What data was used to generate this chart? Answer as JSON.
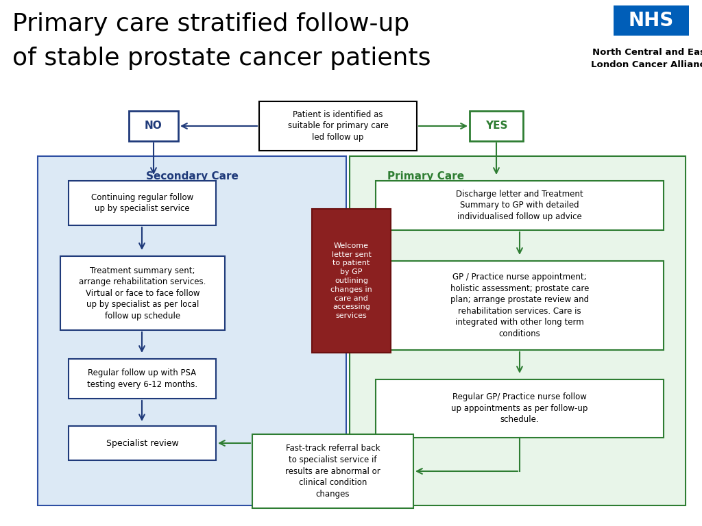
{
  "title_line1": "Primary care stratified follow-up",
  "title_line2": "of stable prostate cancer patients",
  "title_fontsize": 26,
  "nhs_text": "NHS",
  "org_line1": "North Central and East",
  "org_line2": "London Cancer Alliance",
  "bg_color": "#ffffff",
  "blue_dark": "#1f3a7a",
  "blue_fill": "#dce9f5",
  "blue_border": "#2e4fa3",
  "green_dark": "#2e7d32",
  "green_fill": "#e8f5e9",
  "green_border": "#2e7d32",
  "red_fill": "#8b2020",
  "red_border": "#6b1010",
  "nhs_blue": "#005eb8",
  "patient_box_text": "Patient is identified as\nsuitable for primary care\nled follow up",
  "no_text": "NO",
  "yes_text": "YES",
  "secondary_label": "Secondary Care",
  "primary_label": "Primary Care",
  "box1_text": "Continuing regular follow\nup by specialist service",
  "box2_text": "Treatment summary sent;\narrange rehabilitation services.\nVirtual or face to face follow\nup by specialist as per local\nfollow up schedule",
  "box3_text": "Regular follow up with PSA\ntesting every 6-12 months.",
  "box4_text": "Specialist review",
  "welcome_text": "Welcome\nletter sent\nto patient\nby GP\noutlining\nchanges in\ncare and\naccessing\nservices",
  "box5_text": "Discharge letter and Treatment\nSummary to GP with detailed\nindividualised follow up advice",
  "box6_text": "GP / Practice nurse appointment;\nholistic assessment; prostate care\nplan; arrange prostate review and\nrehabilitation services. Care is\nintegrated with other long term\nconditions",
  "box7_text": "Regular GP/ Practice nurse follow\nup appointments as per follow-up\nschedule.",
  "fast_track_text": "Fast-track referral back\nto specialist service if\nresults are abnormal or\nclinical condition\nchanges"
}
